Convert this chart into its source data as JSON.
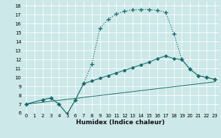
{
  "xlabel": "Humidex (Indice chaleur)",
  "bg_color": "#cce8e8",
  "grid_color": "#ffffff",
  "line_color": "#1a6b6b",
  "xlim": [
    -0.5,
    23.5
  ],
  "ylim": [
    6,
    18.5
  ],
  "xticks": [
    0,
    1,
    2,
    3,
    4,
    5,
    6,
    7,
    8,
    9,
    10,
    11,
    12,
    13,
    14,
    15,
    16,
    17,
    18,
    19,
    20,
    21,
    22,
    23
  ],
  "yticks": [
    6,
    7,
    8,
    9,
    10,
    11,
    12,
    13,
    14,
    15,
    16,
    17,
    18
  ],
  "curve_x": [
    0,
    2,
    3,
    4,
    5,
    6,
    7,
    8,
    9,
    10,
    11,
    12,
    13,
    14,
    15,
    16,
    17,
    18,
    19,
    20,
    21,
    22,
    23
  ],
  "curve_y": [
    7.0,
    7.5,
    7.7,
    7.0,
    5.9,
    7.5,
    9.3,
    11.5,
    15.5,
    16.5,
    17.1,
    17.4,
    17.55,
    17.6,
    17.6,
    17.5,
    17.3,
    14.9,
    12.0,
    10.9,
    10.2,
    10.0,
    9.8
  ],
  "line2_x": [
    0,
    2,
    3,
    4,
    5,
    6,
    7,
    8,
    9,
    10,
    11,
    12,
    13,
    14,
    15,
    16,
    17,
    18,
    19,
    20,
    21,
    22,
    23
  ],
  "line2_y": [
    7.0,
    7.5,
    7.7,
    7.0,
    5.9,
    7.5,
    9.3,
    9.6,
    9.9,
    10.2,
    10.5,
    10.8,
    11.1,
    11.4,
    11.7,
    12.1,
    12.4,
    12.1,
    12.0,
    10.9,
    10.2,
    10.0,
    9.8
  ],
  "line3_x": [
    0,
    23
  ],
  "line3_y": [
    7.0,
    9.5
  ]
}
